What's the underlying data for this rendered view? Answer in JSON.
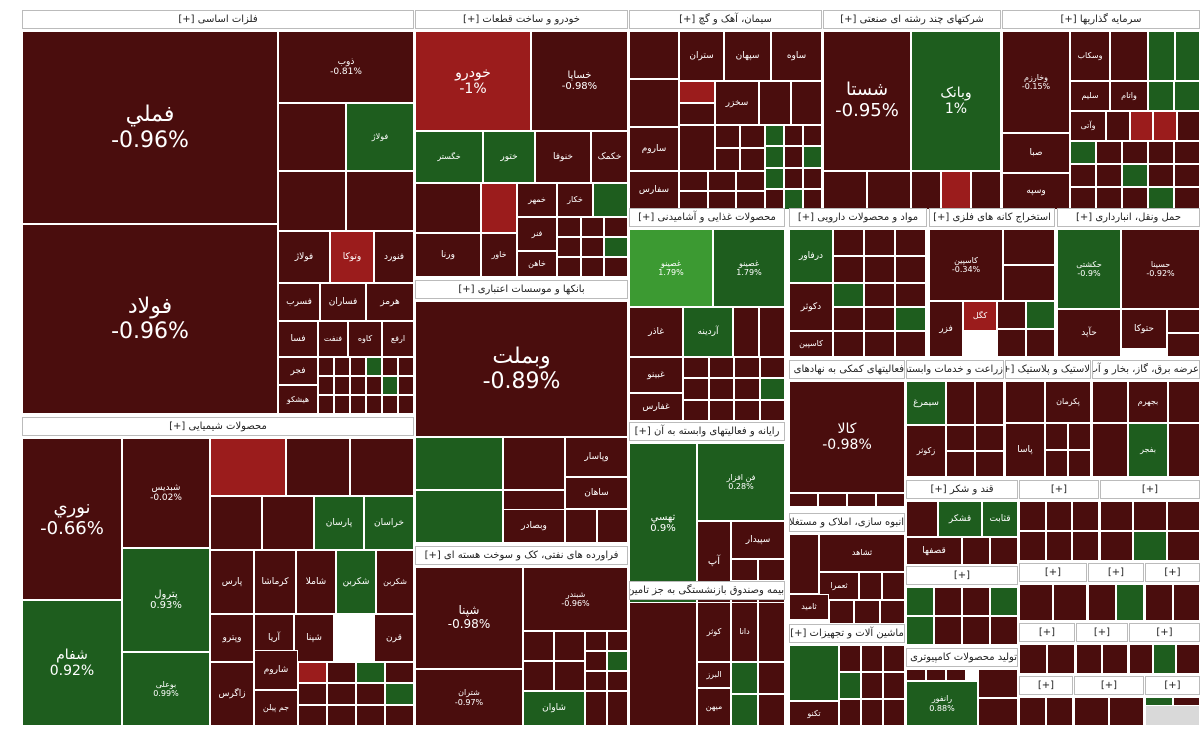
{
  "colors": {
    "neg": "#4a0d0d",
    "pos": "#1e5d1e",
    "posBright": "#3c9a32",
    "negBright": "#9b1c1c",
    "gray": "#d9d9d9"
  },
  "chart_data": {
    "type": "treemap",
    "sectors": [
      {
        "name": "فلزات اساسی [+]",
        "stocks": [
          {
            "symbol": "فملي",
            "change": "-0.96%"
          },
          {
            "symbol": "فولاد",
            "change": "-0.96%"
          },
          {
            "symbol": "ذوب",
            "change": "-0.81%"
          },
          {
            "symbol": "فولاژ"
          },
          {
            "symbol": "وتوکا"
          },
          {
            "symbol": "فنورد"
          },
          {
            "symbol": "فسرب"
          },
          {
            "symbol": "فساران"
          },
          {
            "symbol": "هرمز"
          },
          {
            "symbol": "فسا"
          },
          {
            "symbol": "فنفت"
          },
          {
            "symbol": "کاوه"
          },
          {
            "symbol": "ارفع"
          },
          {
            "symbol": "فجر"
          },
          {
            "symbol": "هیشکو"
          }
        ]
      },
      {
        "name": "خودرو و ساخت قطعات [+]",
        "stocks": [
          {
            "symbol": "خودرو",
            "change": "-1%"
          },
          {
            "symbol": "خساپا",
            "change": "-0.98%"
          },
          {
            "symbol": "خگستر"
          },
          {
            "symbol": "خنوفا"
          },
          {
            "symbol": "خکمک"
          },
          {
            "symbol": "خمهر"
          },
          {
            "symbol": "خکار"
          },
          {
            "symbol": "ختور"
          },
          {
            "symbol": "فنر"
          },
          {
            "symbol": "خاور"
          },
          {
            "symbol": "خاهن"
          },
          {
            "symbol": "ورنا"
          }
        ]
      },
      {
        "name": "سیمان، آهک و گچ [+]",
        "stocks": [
          {
            "symbol": "ساوه"
          },
          {
            "symbol": "سپهان"
          },
          {
            "symbol": "ستران"
          },
          {
            "symbol": "سخزر"
          },
          {
            "symbol": "ساروم"
          },
          {
            "symbol": "سفارس"
          }
        ]
      },
      {
        "name": "شرکتهای چند رشته ای صنعتی [+]",
        "stocks": [
          {
            "symbol": "شستا",
            "change": "-0.95%"
          },
          {
            "symbol": "وبانک",
            "change": "1%"
          }
        ]
      },
      {
        "name": "سرمایه گذاریها [+]",
        "stocks": [
          {
            "symbol": "وخارزم",
            "change": "-0.15%"
          },
          {
            "symbol": "وسکاب"
          },
          {
            "symbol": "سلیم"
          },
          {
            "symbol": "واتام"
          },
          {
            "symbol": "وآتی"
          },
          {
            "symbol": "صبا"
          },
          {
            "symbol": "وسپه"
          }
        ]
      },
      {
        "name": "بانکها و موسسات اعتباری [+]",
        "stocks": [
          {
            "symbol": "وبملت",
            "change": "-0.89%"
          },
          {
            "symbol": "وپاسار"
          },
          {
            "symbol": "ساهان"
          },
          {
            "symbol": "وبصادر"
          }
        ]
      },
      {
        "name": "محصولات شیمیایی [+]",
        "stocks": [
          {
            "symbol": "نوري",
            "change": "-0.66%"
          },
          {
            "symbol": "شبدیس",
            "change": "-0.02%"
          },
          {
            "symbol": "پترول",
            "change": "0.93%"
          },
          {
            "symbol": "شفام",
            "change": "0.92%"
          },
          {
            "symbol": "بوعلی",
            "change": "0.99%"
          },
          {
            "symbol": "خراسان"
          },
          {
            "symbol": "پارسان"
          },
          {
            "symbol": "شکربن"
          },
          {
            "symbol": "شاملا"
          },
          {
            "symbol": "کرماشا"
          },
          {
            "symbol": "پارس"
          },
          {
            "symbol": "وپترو"
          },
          {
            "symbol": "شیراز"
          },
          {
            "symbol": "آریا"
          },
          {
            "symbol": "شپنا"
          },
          {
            "symbol": "قرن"
          },
          {
            "symbol": "زاگرس"
          },
          {
            "symbol": "شاروم"
          },
          {
            "symbol": "جم پیلن"
          }
        ]
      },
      {
        "name": "فراورده های نفتی، کک و سوخت هسته ای [+]",
        "stocks": [
          {
            "symbol": "شپنا",
            "change": "-0.98%"
          },
          {
            "symbol": "شبندر",
            "change": "-0.96%"
          },
          {
            "symbol": "شتران",
            "change": "-0.97%"
          },
          {
            "symbol": "شاوان"
          }
        ]
      },
      {
        "name": "محصولات غذایی و آشامیدنی [+]",
        "stocks": [
          {
            "symbol": "غصینو",
            "change": "1.79%"
          },
          {
            "symbol": "غاذر"
          },
          {
            "symbol": "آردینه"
          },
          {
            "symbol": "غبینو"
          },
          {
            "symbol": "غفارس"
          }
        ]
      },
      {
        "name": "مواد و محصولات دارویی [+]",
        "stocks": [
          {
            "symbol": "درفاور"
          },
          {
            "symbol": "دکوثر"
          },
          {
            "symbol": "کاسپین"
          }
        ]
      },
      {
        "name": "استخراج کانه های فلزی [+]",
        "stocks": [
          {
            "symbol": "کاسپین",
            "change": "-0.34%"
          },
          {
            "symbol": "کگل"
          },
          {
            "symbol": "فزر"
          }
        ]
      },
      {
        "name": "حمل ونقل، انبارداری [+]",
        "stocks": [
          {
            "symbol": "حکشتی",
            "change": "-0.9%"
          },
          {
            "symbol": "حسینا",
            "change": "-0.92%"
          },
          {
            "symbol": "حتوکا"
          },
          {
            "symbol": "حآپد"
          }
        ]
      },
      {
        "name": "رایانه و فعالیتهای وابسته به آن [+]",
        "stocks": [
          {
            "symbol": "تهسي",
            "change": "0.9%"
          },
          {
            "symbol": "فن افزار",
            "change": "0.28%"
          },
          {
            "symbol": "سپیدار"
          },
          {
            "symbol": "آپ"
          }
        ]
      },
      {
        "name": "فعالیتهای کمکی به نهادهای مالی [+]",
        "stocks": [
          {
            "symbol": "کالا",
            "change": "-0.98%"
          }
        ]
      },
      {
        "name": "زراعت و خدمات وابسته [+]",
        "stocks": [
          {
            "symbol": "سیمرغ"
          },
          {
            "symbol": "زکوثر"
          }
        ]
      },
      {
        "name": "لاستیک و پلاستیک [+]",
        "stocks": [
          {
            "symbol": "پکرمان"
          },
          {
            "symbol": "پاسا"
          }
        ]
      },
      {
        "name": "عرضه برق، گاز، بخار و آب گرم [+]",
        "stocks": [
          {
            "symbol": "بجهرم"
          },
          {
            "symbol": "بفجر"
          }
        ]
      },
      {
        "name": "انبوه سازی، املاک و مستغلات [+]",
        "stocks": [
          {
            "symbol": "ثشاهد"
          },
          {
            "symbol": "ثعمرا"
          },
          {
            "symbol": "ثامید"
          }
        ]
      },
      {
        "name": "قند و شکر [+]",
        "stocks": [
          {
            "symbol": "قشکر"
          },
          {
            "symbol": "قثابت"
          },
          {
            "symbol": "قصفها"
          }
        ]
      },
      {
        "name": "بیمه وصندوق بازنشستگی به جز تامین اجتماعی [+]",
        "stocks": [
          {
            "symbol": "کوثر"
          },
          {
            "symbol": "دانا"
          },
          {
            "symbol": "البرز"
          },
          {
            "symbol": "میهن"
          }
        ]
      },
      {
        "name": "ماشین آلات و تجهیزات [+]",
        "stocks": [
          {
            "symbol": "تکنو"
          }
        ]
      },
      {
        "name": "تولید محصولات کامپیوتری الکترونیکی و نوری [+]",
        "stocks": [
          {
            "symbol": "رانفور",
            "change": "0.88%"
          }
        ]
      }
    ]
  }
}
